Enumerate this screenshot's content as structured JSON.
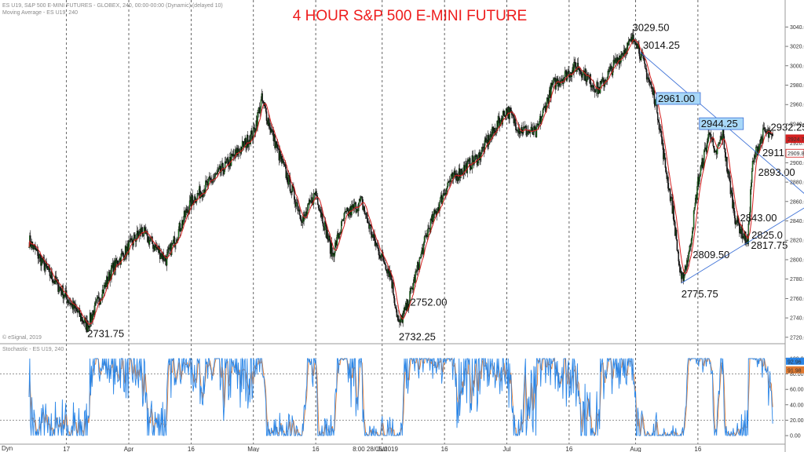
{
  "header": {
    "line1": "ES U19, S&P 500 E-MINI FUTURES - GLOBEX, 240, 00:00-00:00 (Dynamic) (delayed 10)",
    "line2": "Moving Average - ES U19, 240",
    "copyright": "© eSignal, 2019",
    "stoch_label": "Stochastic - ES U19, 240",
    "corner": "Dyn"
  },
  "colors": {
    "title": "#ee1c1c",
    "up_candle": "#1a7a1a",
    "down_candle": "#111111",
    "moving_average": "#d42020",
    "trendline": "#3a6fd6",
    "stoch_k": "#2a86e8",
    "stoch_d": "#e07a30",
    "price_tag_last": "#d42020",
    "price_tag_ma": "#d42020",
    "label_box_fill": "#a8d8f8",
    "grid_vertical": "#404040"
  },
  "chart_data": [
    {
      "type": "candlestick",
      "title": "4 HOUR  S&P 500 E-MINI FUTURE",
      "ylim": [
        2715,
        3050
      ],
      "yticks": [
        "2720.00",
        "2740.00",
        "2760.00",
        "2780.00",
        "2800.00",
        "2820.00",
        "2840.00",
        "2860.00",
        "2880.00",
        "2900.00",
        "2920.00",
        "2940.00",
        "2960.00",
        "2980.00",
        "3000.00",
        "3020.00",
        "3040.00"
      ],
      "price_tags": [
        {
          "label": "2924.75",
          "value": 2924.75,
          "kind": "last"
        },
        {
          "label": "2909.81",
          "value": 2909.81,
          "kind": "ma"
        }
      ],
      "x_ticks": [
        "17",
        "Apr",
        "16",
        "May",
        "16",
        "Jun",
        "16",
        "Jul",
        "16",
        "Aug",
        "16"
      ],
      "x_cursor_label": "8:00 28/05/2019",
      "swing_points": [
        {
          "x": "2019-03-08",
          "y": 2820
        },
        {
          "x": "2019-03-13",
          "y": 2785
        },
        {
          "x": "2019-03-22",
          "y": 2731.75
        },
        {
          "x": "2019-03-28",
          "y": 2790
        },
        {
          "x": "2019-04-04",
          "y": 2830
        },
        {
          "x": "2019-04-10",
          "y": 2800
        },
        {
          "x": "2019-04-16",
          "y": 2860
        },
        {
          "x": "2019-04-24",
          "y": 2895
        },
        {
          "x": "2019-05-01",
          "y": 2930
        },
        {
          "x": "2019-05-03",
          "y": 2965
        },
        {
          "x": "2019-05-07",
          "y": 2910
        },
        {
          "x": "2019-05-13",
          "y": 2840
        },
        {
          "x": "2019-05-16",
          "y": 2870
        },
        {
          "x": "2019-05-20",
          "y": 2805
        },
        {
          "x": "2019-05-23",
          "y": 2845
        },
        {
          "x": "2019-05-27",
          "y": 2860
        },
        {
          "x": "2019-05-30",
          "y": 2820
        },
        {
          "x": "2019-06-03",
          "y": 2785
        },
        {
          "x": "2019-06-05",
          "y": 2732.25
        },
        {
          "x": "2019-06-07",
          "y": 2752
        },
        {
          "x": "2019-06-12",
          "y": 2830
        },
        {
          "x": "2019-06-17",
          "y": 2880
        },
        {
          "x": "2019-06-21",
          "y": 2895
        },
        {
          "x": "2019-06-24",
          "y": 2905
        },
        {
          "x": "2019-07-01",
          "y": 2955
        },
        {
          "x": "2019-07-04",
          "y": 2935
        },
        {
          "x": "2019-07-08",
          "y": 2930
        },
        {
          "x": "2019-07-12",
          "y": 2980
        },
        {
          "x": "2019-07-18",
          "y": 3000
        },
        {
          "x": "2019-07-23",
          "y": 2975
        },
        {
          "x": "2019-07-29",
          "y": 3015
        },
        {
          "x": "2019-08-01",
          "y": 3029.5
        },
        {
          "x": "2019-08-02",
          "y": 3014.25
        },
        {
          "x": "2019-08-06",
          "y": 2961
        },
        {
          "x": "2019-08-08",
          "y": 2900
        },
        {
          "x": "2019-08-10",
          "y": 2850
        },
        {
          "x": "2019-08-12",
          "y": 2775.75
        },
        {
          "x": "2019-08-14",
          "y": 2809.5
        },
        {
          "x": "2019-08-16",
          "y": 2880
        },
        {
          "x": "2019-08-19",
          "y": 2935
        },
        {
          "x": "2019-08-20",
          "y": 2905
        },
        {
          "x": "2019-08-22",
          "y": 2930
        },
        {
          "x": "2019-08-23",
          "y": 2895
        },
        {
          "x": "2019-08-25",
          "y": 2843
        },
        {
          "x": "2019-08-27",
          "y": 2825
        },
        {
          "x": "2019-08-28",
          "y": 2817.75
        },
        {
          "x": "2019-08-29",
          "y": 2893
        },
        {
          "x": "2019-08-30",
          "y": 2911
        },
        {
          "x": "2019-09-01",
          "y": 2932.25
        },
        {
          "x": "2019-09-03",
          "y": 2924.75
        }
      ],
      "annotations": [
        {
          "label": "2731.75",
          "at": "2019-03-22"
        },
        {
          "label": "2752.00",
          "at": "2019-06-07"
        },
        {
          "label": "2732.25",
          "at": "2019-06-05"
        },
        {
          "label": "3029.50",
          "at": "2019-08-01"
        },
        {
          "label": "3014.25",
          "at": "2019-08-02"
        },
        {
          "label": "2961.00",
          "at": "2019-08-06",
          "boxed": true
        },
        {
          "label": "2944.25",
          "at": "2019-08-19",
          "boxed": true
        },
        {
          "label": "2932.25",
          "at": "2019-09-01"
        },
        {
          "label": "2911.00",
          "at": "2019-08-30"
        },
        {
          "label": "2893.00",
          "at": "2019-08-29"
        },
        {
          "label": "2843.00",
          "at": "2019-08-25"
        },
        {
          "label": "2825.0",
          "at": "2019-08-27"
        },
        {
          "label": "2817.75",
          "at": "2019-08-28"
        },
        {
          "label": "2809.50",
          "at": "2019-08-14"
        },
        {
          "label": "2775.75",
          "at": "2019-08-12"
        }
      ]
    },
    {
      "type": "line",
      "series_kind": "stochastic",
      "ylim": [
        -5,
        105
      ],
      "yticks": [
        "100.00",
        "80.00",
        "60.00",
        "40.00",
        "20.00",
        "0.00"
      ],
      "reference_lines": [
        80,
        20
      ],
      "last_tags": [
        "92.96",
        "91.98"
      ]
    }
  ]
}
